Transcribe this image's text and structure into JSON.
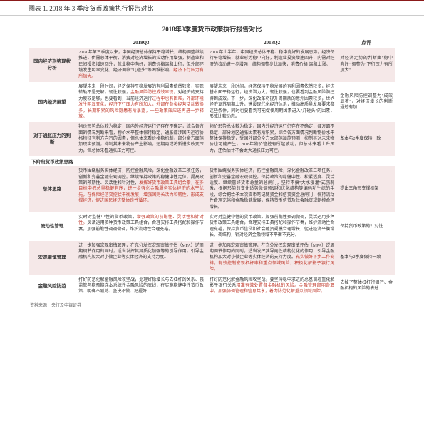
{
  "header": "图表 1. 2018 年 3 季度货币政策执行报告对比",
  "title": "2018年3季度货币政策执行报告对比",
  "columns": [
    "",
    "2018Q3",
    "2018Q2",
    "点评"
  ],
  "sections": [
    {
      "label": "国内经济形势现状分析",
      "highlight": true,
      "q3_plain": "2018 年第三季度以来，中国经济总体保持平稳增长，结构调整继续推进，供需总体平衡，消费对经济增长的拉动作用增强，制造业和民间投资增速回升，就业稳中向好，消费价格温和上行，但外部环境发生明显变化，经济面临\"几碰头\"等困难影响。",
      "q3_red": "经济下行压力有所加大。",
      "q2": "2018 年上半年，中国经济总体平稳、稳中向好的发展态势。经济保持平稳增长，就业形势稳中向好，制造业投资增速回升，内需对经济的拉动进一步增强，结构调整步伐加快，消费价格 温和上涨。",
      "comment": "对经济走势的判断由\"稳中向好\" 调整为\"下行压力有所加大\""
    },
    {
      "label": "国内经济展望",
      "highlight": false,
      "q3_plain": "展望未来一段时间，经济保持平稳发展的有利因素依然较多，实现转轨不是无解，韧性较强，",
      "q3_red1": "金融风险防控成效显现，",
      "q3_mid": "对经济的支持力度较足够，也要看到，当前经济运行",
      "q3_red2": "过程中也有困难，外部环境发生明显变化，经济下行压力有所加大，外部在各类经营活动转换多，长期积累的风险隐患有所暴露，一些政策效应还再进一步释放。",
      "q2": "展望未来一段时间，经济保持平稳发展的有利因素依然较多，经济基本面平稳运行，经济潜力大，韧性较强，也要看到金融风险防控得到成效。下一步，深化改革将提升周期质的意外因素较多，世界经济复苏周期上升，建设现代化经济体系，推动高质量发展要求都这些条件，同时也要看到可能促使周期因素进入\"几碰头\"的因素，形成比较动态。",
      "comment": "金融风险防控调整为\"成效显著\"，对经济增长的判断通过有加"
    },
    {
      "label": "对于通胀压力的判断",
      "highlight": true,
      "q3": "物价形势总体较为稳定，国内外经济运行仍存在不确定，综合各方面的情况判断来看，物价水平整体保持稳定，通胀都涉国内运行价格特征有利方向行的因素，但总体来看价格稳机制，部分金方面施加现实预测，抑制其未来物价产生影响，短期内或将新进步改变压力，但总体来看通胀压力可控。",
      "q2": "物价形势总体较为稳定，国内外经济运行仍存在不确定，各方面不稳定、部分地区通胀因素有所积累，综合各方面情况判断物价水平整体保持稳定，受国外部分全方大部施加施预测，抑制其对未来物价也可能产生，2018年物价管控有所起波动，但总体来看上升压力，还估估计不会太大通胀压力可控。",
      "comment": "基本与2季度保持一致"
    }
  ],
  "subheader": "下阶段货币政策思路",
  "sections2": [
    {
      "label": "总体思路",
      "highlight": true,
      "q3_plain": "货币围绕服务实体经济，防控金融风险，深化金融改革三项任务，创新和完善金融宏观调控。继续保持政策的稳健中性定位，提高政策的预期性、灵活性和针对性，",
      "q3_red": "发挥好货币政策工具组合拳，在多目标中把总量稳健有序，进一步强化金融服务实体经济的水平优先，在保险经信贷控状平衡发展，增强国则长活力和韧性，形成支撑经济，促进国民经济整体良性循环。",
      "q2": "货币围绕服务实体经济，防控金融风险，深化金融改革三项任务，创新和完善金融宏观调控。保持政策的稳健中性、松紧适度、灵活适度。继续管好货币总量的总闸门，坚持不搞\"大水漫灌\"式强刺激，根据形势的变化适势微调预调和优化结构等编码功生综的手段，综合把给予本次货币笔记随资金和信贷资金总闸门，保持流动性合理充裕和金融稳健发展，保持货币信贷及社会融资规朝模合理增长。",
      "comment": "提出三角形支撑框架"
    },
    {
      "label": "流动性管理",
      "highlight": false,
      "q3_plain": "实时对监健中性的货币政策，",
      "q3_red": "增强政策的前瞻性、灵活性和针对性。",
      "q3_plain2": "灵活运用多种货币政策工具组合，合理安排工具搭配和操作节奏，加强前瞻性调调微调，维护流动性合理充裕。",
      "q2": "实时对监健中性的货币政策，加强前瞻性预调微调，灵活运用多种货币政策工具组合，合理安排工具搭配和操作节奏，维护流动性合理充裕，保持货币信贷和社会融资规模合理增长，促进经济平衡增长。调结构，针对经济金融领域不平衡不充分。",
      "comment": "保持货币政策的针对性"
    },
    {
      "label": "宏观审慎管理",
      "highlight": true,
      "q3": "进一步加强宏观审慎管理，在充分发挥宏观审慎评估（MPA）逆周期调节作用的同时，适当发挥其异质化加强等的引导作用，引导金融机构加大对小微企业等实体经济的支持力度。",
      "q2_plain": "进一步加强宏观审慎管理，在充分发挥宏观审慎评估（MPA）逆周期调节作用的同时，适当发挥其导向性结构优化的作用，引导金融机构加大对小微企业等实体经济的支持力度。",
      "q2_red": "充实做好下步工作安排，有效控制宏观杠杆率和重点领域风险，积极化解影子银行风险。",
      "comment": "基本与2季度保持一致"
    },
    {
      "label": "金融风险防范",
      "highlight": false,
      "q3_plain": "打好防范化解金融风险攻坚战，处理好稳增长与去杠杆的关系、强监管与稳预期连本系统性金融风险的底线，在实施稳健中性货币政策、明确不刚兑、坚决不做、把握好",
      "q3_red": "",
      "q2_plain": "打好防范化解金融风险攻坚战，要坚持稳中求进的总基调着重化解影子银行关系",
      "q2_red": "精准有效处置各金融机的风险。金融管理部明各职中，加强协调管理和信息共享，着力防范化解重点领域风险。",
      "comment": "去掉了整体杠杆行银行、金融机构的风险的表述"
    }
  ],
  "source": "资料来源：央行及中银证券"
}
